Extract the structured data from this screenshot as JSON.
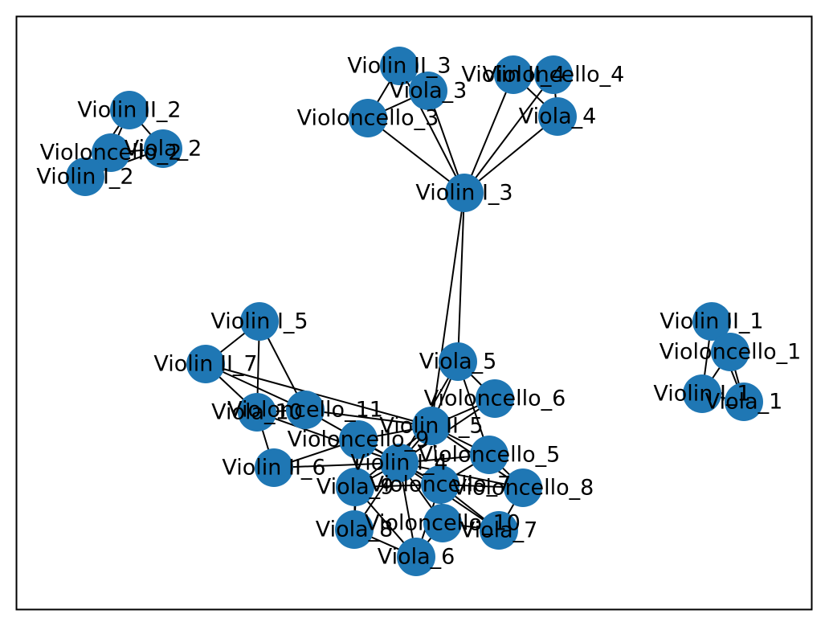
{
  "colors": {
    "node_fill": "#1f77b4",
    "edge": "#000000",
    "frame": "#000000",
    "background": "#ffffff"
  },
  "graph": {
    "type": "network",
    "nodes": [
      {
        "id": "Violin II_2",
        "label": "Violin II_2"
      },
      {
        "id": "Violoncello_2",
        "label": "Violoncello_2"
      },
      {
        "id": "Viola_2",
        "label": "Viola_2"
      },
      {
        "id": "Violin I_2",
        "label": "Violin I_2"
      },
      {
        "id": "Violin II_3",
        "label": "Violin II_3"
      },
      {
        "id": "Viola_3",
        "label": "Viola_3"
      },
      {
        "id": "Violoncello_3",
        "label": "Violoncello_3"
      },
      {
        "id": "Violin II_4",
        "label": "Violin II_4"
      },
      {
        "id": "Violoncello_4",
        "label": "Violoncello_4"
      },
      {
        "id": "Viola_4",
        "label": "Viola_4"
      },
      {
        "id": "Violin I_3",
        "label": "Violin I_3"
      },
      {
        "id": "Violin II_1",
        "label": "Violin II_1"
      },
      {
        "id": "Violoncello_1",
        "label": "Violoncello_1"
      },
      {
        "id": "Violin I_1",
        "label": "Violin I_1"
      },
      {
        "id": "Viola_1",
        "label": "Viola_1"
      },
      {
        "id": "Violin I_5",
        "label": "Violin I_5"
      },
      {
        "id": "Violin II_7",
        "label": "Violin II_7"
      },
      {
        "id": "Viola_10",
        "label": "Viola_10"
      },
      {
        "id": "Violoncello_11",
        "label": "Violoncello_11"
      },
      {
        "id": "Violin II_6",
        "label": "Violin II_6"
      },
      {
        "id": "Viola_5",
        "label": "Viola_5"
      },
      {
        "id": "Violoncello_6",
        "label": "Violoncello_6"
      },
      {
        "id": "Violin II_5",
        "label": "Violin II_5"
      },
      {
        "id": "Violoncello_9",
        "label": "Violoncello_9"
      },
      {
        "id": "Violin I_4",
        "label": "Violin I_4"
      },
      {
        "id": "Violoncello_5",
        "label": "Violoncello_5"
      },
      {
        "id": "Viola_9",
        "label": "Viola_9"
      },
      {
        "id": "Violoncello_7",
        "label": "Violoncello_7"
      },
      {
        "id": "Violoncello_8",
        "label": "Violoncello_8"
      },
      {
        "id": "Violoncello_10",
        "label": "Violoncello_10"
      },
      {
        "id": "Viola_8",
        "label": "Viola_8"
      },
      {
        "id": "Viola_7",
        "label": "Viola_7"
      },
      {
        "id": "Viola_6",
        "label": "Viola_6"
      }
    ],
    "edges": [
      [
        "Violin II_2",
        "Violoncello_2"
      ],
      [
        "Violin II_2",
        "Viola_2"
      ],
      [
        "Violin II_2",
        "Violin I_2"
      ],
      [
        "Violoncello_2",
        "Viola_2"
      ],
      [
        "Violoncello_2",
        "Violin I_2"
      ],
      [
        "Viola_2",
        "Violin I_2"
      ],
      [
        "Violin II_3",
        "Viola_3"
      ],
      [
        "Violin II_3",
        "Violoncello_3"
      ],
      [
        "Violin II_3",
        "Violin I_3"
      ],
      [
        "Viola_3",
        "Violoncello_3"
      ],
      [
        "Viola_3",
        "Violin I_3"
      ],
      [
        "Violoncello_3",
        "Violin I_3"
      ],
      [
        "Violin II_4",
        "Violoncello_4"
      ],
      [
        "Violin II_4",
        "Viola_4"
      ],
      [
        "Violin II_4",
        "Violin I_3"
      ],
      [
        "Violoncello_4",
        "Viola_4"
      ],
      [
        "Violoncello_4",
        "Violin I_3"
      ],
      [
        "Viola_4",
        "Violin I_3"
      ],
      [
        "Violin I_3",
        "Viola_5"
      ],
      [
        "Violin I_3",
        "Violin II_5"
      ],
      [
        "Violin II_1",
        "Violoncello_1"
      ],
      [
        "Violin II_1",
        "Violin I_1"
      ],
      [
        "Violin II_1",
        "Viola_1"
      ],
      [
        "Violoncello_1",
        "Violin I_1"
      ],
      [
        "Violoncello_1",
        "Viola_1"
      ],
      [
        "Violin I_1",
        "Viola_1"
      ],
      [
        "Violin I_5",
        "Violin II_7"
      ],
      [
        "Violin I_5",
        "Viola_10"
      ],
      [
        "Violin I_5",
        "Violoncello_11"
      ],
      [
        "Violin II_7",
        "Viola_10"
      ],
      [
        "Violin II_7",
        "Violoncello_11"
      ],
      [
        "Violin II_7",
        "Violin II_5"
      ],
      [
        "Viola_10",
        "Violoncello_11"
      ],
      [
        "Viola_10",
        "Violin II_6"
      ],
      [
        "Viola_10",
        "Violin I_4"
      ],
      [
        "Violoncello_11",
        "Violin II_5"
      ],
      [
        "Violoncello_11",
        "Violin I_4"
      ],
      [
        "Violin II_6",
        "Violoncello_9"
      ],
      [
        "Violin II_6",
        "Violin I_4"
      ],
      [
        "Viola_5",
        "Violoncello_6"
      ],
      [
        "Viola_5",
        "Violin II_5"
      ],
      [
        "Viola_5",
        "Violin I_4"
      ],
      [
        "Viola_5",
        "Violoncello_5"
      ],
      [
        "Violoncello_6",
        "Violin II_5"
      ],
      [
        "Violoncello_6",
        "Violin I_4"
      ],
      [
        "Violin II_5",
        "Violoncello_9"
      ],
      [
        "Violin II_5",
        "Violin I_4"
      ],
      [
        "Violin II_5",
        "Violoncello_5"
      ],
      [
        "Violin II_5",
        "Violoncello_7"
      ],
      [
        "Violin II_5",
        "Violoncello_8"
      ],
      [
        "Violin II_5",
        "Viola_9"
      ],
      [
        "Violoncello_9",
        "Violin I_4"
      ],
      [
        "Violoncello_9",
        "Viola_9"
      ],
      [
        "Violoncello_9",
        "Violoncello_7"
      ],
      [
        "Violoncello_9",
        "Viola_8"
      ],
      [
        "Violin I_4",
        "Violoncello_5"
      ],
      [
        "Violin I_4",
        "Viola_9"
      ],
      [
        "Violin I_4",
        "Violoncello_7"
      ],
      [
        "Violin I_4",
        "Violoncello_8"
      ],
      [
        "Violin I_4",
        "Violoncello_10"
      ],
      [
        "Violin I_4",
        "Viola_8"
      ],
      [
        "Violin I_4",
        "Viola_7"
      ],
      [
        "Violin I_4",
        "Viola_6"
      ],
      [
        "Violoncello_5",
        "Violoncello_7"
      ],
      [
        "Violoncello_5",
        "Violoncello_8"
      ],
      [
        "Viola_9",
        "Violoncello_7"
      ],
      [
        "Viola_9",
        "Viola_8"
      ],
      [
        "Viola_9",
        "Viola_6"
      ],
      [
        "Violoncello_7",
        "Violoncello_10"
      ],
      [
        "Violoncello_7",
        "Violoncello_8"
      ],
      [
        "Violoncello_7",
        "Viola_7"
      ],
      [
        "Violoncello_7",
        "Viola_6"
      ],
      [
        "Violoncello_10",
        "Viola_6"
      ],
      [
        "Violoncello_10",
        "Viola_7"
      ],
      [
        "Viola_8",
        "Viola_6"
      ],
      [
        "Violoncello_8",
        "Viola_7"
      ]
    ]
  }
}
